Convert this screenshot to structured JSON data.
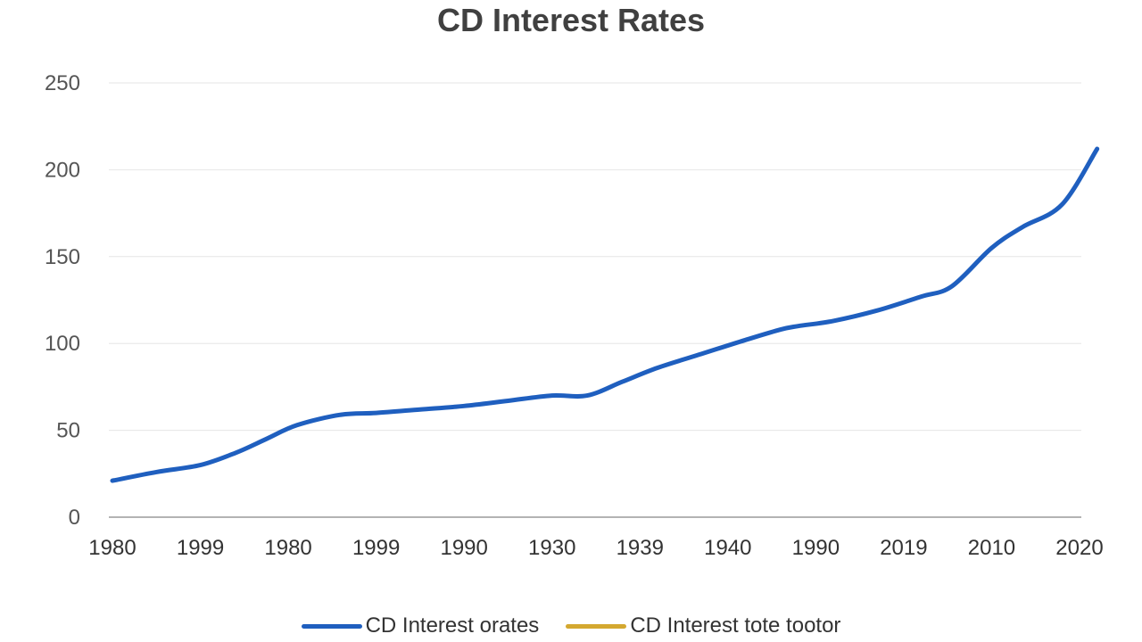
{
  "chart_data": {
    "type": "line",
    "title": "CD Interest Rates",
    "xlabel": "",
    "ylabel": "",
    "ylim": [
      0,
      250
    ],
    "yticks": [
      0,
      50,
      100,
      150,
      200,
      250
    ],
    "categories": [
      "1980",
      "1999",
      "1980",
      "1999",
      "1990",
      "1930",
      "1939",
      "1940",
      "1990",
      "2019",
      "2010",
      "2020"
    ],
    "grid": true,
    "legend_placement": "bottom",
    "series": [
      {
        "name": "CD Interest orates",
        "color": "#1f5fbf",
        "points": [
          [
            0,
            21
          ],
          [
            0.5,
            26
          ],
          [
            1,
            30
          ],
          [
            1.4,
            37
          ],
          [
            1.75,
            45
          ],
          [
            2.1,
            53
          ],
          [
            2.6,
            59
          ],
          [
            3,
            60
          ],
          [
            3.5,
            62
          ],
          [
            4,
            64
          ],
          [
            4.5,
            67
          ],
          [
            5,
            70
          ],
          [
            5.4,
            70
          ],
          [
            5.8,
            78
          ],
          [
            6.2,
            86
          ],
          [
            6.7,
            94
          ],
          [
            7.2,
            102
          ],
          [
            7.6,
            108
          ],
          [
            7.8,
            110
          ],
          [
            8.2,
            113
          ],
          [
            8.7,
            119
          ],
          [
            9.2,
            127
          ],
          [
            9.55,
            133
          ],
          [
            10,
            155
          ],
          [
            10.35,
            167
          ],
          [
            10.8,
            180
          ],
          [
            11.2,
            212
          ]
        ]
      },
      {
        "name": "CD Interest tote tootor",
        "color": "#d4a830",
        "points": []
      }
    ]
  }
}
